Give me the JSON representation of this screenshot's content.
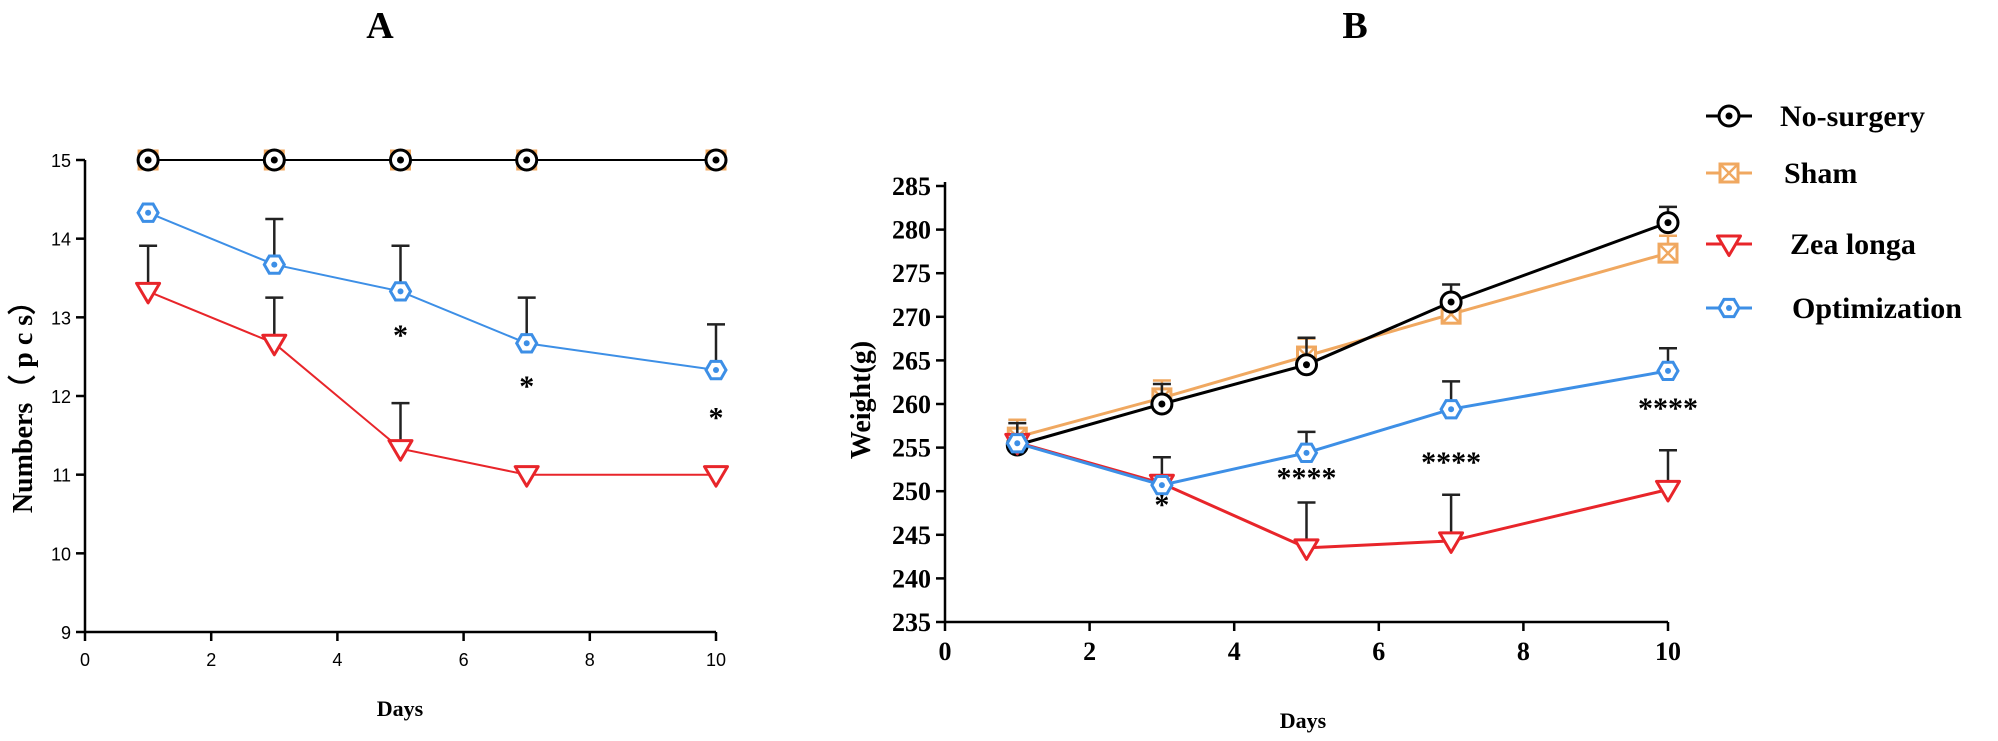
{
  "chart_data": [
    {
      "type": "line",
      "title": "A",
      "xlabel": "Days",
      "ylabel": "Numbers（ p c s）",
      "xlim": [
        0,
        10
      ],
      "ylim": [
        9,
        15
      ],
      "x_ticks": [
        0,
        2,
        4,
        6,
        8,
        10
      ],
      "y_ticks": [
        9,
        10,
        11,
        12,
        13,
        14,
        15
      ],
      "x": [
        1,
        3,
        5,
        7,
        10
      ],
      "series": [
        {
          "name": "No-surgery",
          "color": "#000000",
          "marker": "circle-dot",
          "values": [
            15,
            15,
            15,
            15,
            15
          ],
          "error": [
            0,
            0,
            0,
            0,
            0
          ]
        },
        {
          "name": "Sham",
          "color": "#F0A860",
          "marker": "square-x",
          "values": [
            15,
            15,
            15,
            15,
            15
          ],
          "error": [
            0,
            0,
            0,
            0,
            0
          ]
        },
        {
          "name": "Zea longa",
          "color": "#E8252A",
          "marker": "triangle-down",
          "values": [
            13.33,
            12.67,
            11.33,
            11.0,
            11.0
          ],
          "error": [
            0.58,
            0.58,
            0.58,
            0,
            0
          ]
        },
        {
          "name": "Optimization",
          "color": "#3D8FE6",
          "marker": "hexagon-dot",
          "values": [
            14.33,
            13.67,
            13.33,
            12.67,
            12.33
          ],
          "error": [
            0,
            0.58,
            0.58,
            0.58,
            0.58
          ]
        }
      ],
      "annotations": [
        {
          "x": 5,
          "y": 12.65,
          "text": "*"
        },
        {
          "x": 7,
          "y": 12.0,
          "text": "*"
        },
        {
          "x": 10,
          "y": 11.6,
          "text": "*"
        }
      ]
    },
    {
      "type": "line",
      "title": "B",
      "xlabel": "Days",
      "ylabel": "Weight(g)",
      "xlim": [
        0,
        10
      ],
      "ylim": [
        235,
        285
      ],
      "x_ticks": [
        0,
        2,
        4,
        6,
        8,
        10
      ],
      "y_ticks": [
        235,
        240,
        245,
        250,
        255,
        260,
        265,
        270,
        275,
        280,
        285
      ],
      "x": [
        1,
        3,
        5,
        7,
        10
      ],
      "legend_position": "top-right",
      "series": [
        {
          "name": "No-surgery",
          "color": "#000000",
          "marker": "circle-dot",
          "values": [
            255.3,
            260.0,
            264.5,
            271.7,
            280.8
          ],
          "error": [
            2.5,
            2.3,
            3.1,
            2.0,
            1.8
          ]
        },
        {
          "name": "Sham",
          "color": "#F0A860",
          "marker": "square-x",
          "values": [
            256.2,
            260.7,
            265.5,
            270.3,
            277.3
          ],
          "error": [
            2.0,
            2.0,
            2.0,
            2.0,
            2.0
          ]
        },
        {
          "name": "Zea longa",
          "color": "#E8252A",
          "marker": "triangle-down",
          "values": [
            255.6,
            250.9,
            243.5,
            244.3,
            250.2
          ],
          "error": [
            0,
            3.0,
            5.2,
            5.3,
            4.5
          ]
        },
        {
          "name": "Optimization",
          "color": "#3D8FE6",
          "marker": "hexagon-dot",
          "values": [
            255.5,
            250.7,
            254.4,
            259.4,
            263.8
          ],
          "error": [
            0,
            0,
            2.4,
            3.2,
            2.6
          ]
        }
      ],
      "annotations": [
        {
          "x": 3,
          "y": 247.3,
          "text": "*"
        },
        {
          "x": 5,
          "y": 250.4,
          "text": "****"
        },
        {
          "x": 7,
          "y": 252.2,
          "text": "****"
        },
        {
          "x": 10,
          "y": 258.4,
          "text": "****"
        }
      ]
    }
  ]
}
